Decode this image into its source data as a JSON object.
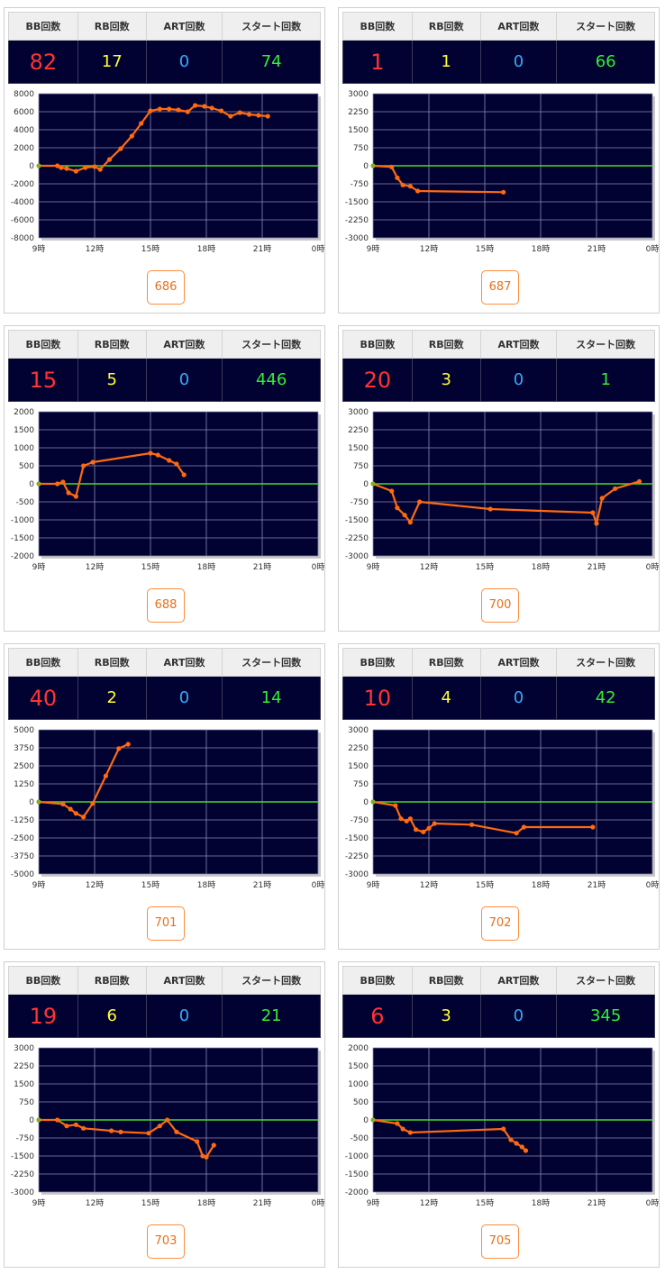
{
  "headers": {
    "bb": "BB回数",
    "rb": "RB回数",
    "art": "ART回数",
    "start": "スタート回数"
  },
  "chart_data": [
    {
      "type": "line",
      "machine": "686",
      "bb": "82",
      "rb": "17",
      "art": "0",
      "start": "74",
      "x_ticks": [
        "9時",
        "12時",
        "15時",
        "18時",
        "21時",
        "0時"
      ],
      "y_ticks": [
        "8000",
        "6000",
        "4000",
        "2000",
        "0",
        "-2000",
        "-4000",
        "-6000",
        "-8000"
      ],
      "ylim": [
        -8000,
        8000
      ],
      "xlim": [
        9,
        24
      ],
      "x": [
        9.0,
        10.0,
        10.2,
        10.5,
        11.0,
        11.5,
        12.0,
        12.3,
        12.8,
        13.4,
        14.0,
        14.5,
        15.0,
        15.5,
        16.0,
        16.5,
        17.0,
        17.4,
        17.9,
        18.3,
        18.8,
        19.3,
        19.8,
        20.3,
        20.8,
        21.3
      ],
      "y": [
        0,
        0,
        -200,
        -300,
        -600,
        -200,
        -100,
        -400,
        700,
        1900,
        3300,
        4700,
        6100,
        6300,
        6300,
        6200,
        6000,
        6700,
        6600,
        6400,
        6100,
        5500,
        5900,
        5700,
        5600,
        5500
      ]
    },
    {
      "type": "line",
      "machine": "687",
      "bb": "1",
      "rb": "1",
      "art": "0",
      "start": "66",
      "x_ticks": [
        "9時",
        "12時",
        "15時",
        "18時",
        "21時",
        "0時"
      ],
      "y_ticks": [
        "3000",
        "2250",
        "1500",
        "750",
        "0",
        "-750",
        "-1500",
        "-2250",
        "-3000"
      ],
      "ylim": [
        -3000,
        3000
      ],
      "xlim": [
        9,
        24
      ],
      "x": [
        9.0,
        10.0,
        10.3,
        10.6,
        11.0,
        11.4,
        16.0
      ],
      "y": [
        0,
        -50,
        -500,
        -800,
        -850,
        -1050,
        -1100
      ]
    },
    {
      "type": "line",
      "machine": "688",
      "bb": "15",
      "rb": "5",
      "art": "0",
      "start": "446",
      "x_ticks": [
        "9時",
        "12時",
        "15時",
        "18時",
        "21時",
        "0時"
      ],
      "y_ticks": [
        "2000",
        "1500",
        "1000",
        "500",
        "0",
        "-500",
        "-1000",
        "-1500",
        "-2000"
      ],
      "ylim": [
        -2000,
        2000
      ],
      "xlim": [
        9,
        24
      ],
      "x": [
        9.0,
        10.0,
        10.3,
        10.6,
        11.0,
        11.4,
        11.9,
        15.0,
        15.4,
        16.0,
        16.4,
        16.8
      ],
      "y": [
        0,
        0,
        50,
        -250,
        -350,
        500,
        600,
        850,
        800,
        650,
        550,
        250
      ]
    },
    {
      "type": "line",
      "machine": "700",
      "bb": "20",
      "rb": "3",
      "art": "0",
      "start": "1",
      "x_ticks": [
        "9時",
        "12時",
        "15時",
        "18時",
        "21時",
        "0時"
      ],
      "y_ticks": [
        "3000",
        "2250",
        "1500",
        "750",
        "0",
        "-750",
        "-1500",
        "-2250",
        "-3000"
      ],
      "ylim": [
        -3000,
        3000
      ],
      "xlim": [
        9,
        24
      ],
      "x": [
        9.0,
        10.0,
        10.3,
        10.7,
        11.0,
        11.5,
        15.3,
        20.8,
        21.0,
        21.3,
        22.0,
        23.3
      ],
      "y": [
        0,
        -300,
        -1000,
        -1300,
        -1600,
        -750,
        -1050,
        -1200,
        -1650,
        -600,
        -200,
        100
      ]
    },
    {
      "type": "line",
      "machine": "701",
      "bb": "40",
      "rb": "2",
      "art": "0",
      "start": "14",
      "x_ticks": [
        "9時",
        "12時",
        "15時",
        "18時",
        "21時",
        "0時"
      ],
      "y_ticks": [
        "5000",
        "3750",
        "2500",
        "1250",
        "0",
        "-1250",
        "-2500",
        "-3750",
        "-5000"
      ],
      "ylim": [
        -5000,
        5000
      ],
      "xlim": [
        9,
        24
      ],
      "x": [
        9.0,
        10.3,
        10.7,
        11.0,
        11.4,
        11.9,
        12.6,
        13.3,
        13.8
      ],
      "y": [
        0,
        -150,
        -500,
        -800,
        -1050,
        -100,
        1800,
        3700,
        4000
      ]
    },
    {
      "type": "line",
      "machine": "702",
      "bb": "10",
      "rb": "4",
      "art": "0",
      "start": "42",
      "x_ticks": [
        "9時",
        "12時",
        "15時",
        "18時",
        "21時",
        "0時"
      ],
      "y_ticks": [
        "3000",
        "2250",
        "1500",
        "750",
        "0",
        "-750",
        "-1500",
        "-2250",
        "-3000"
      ],
      "ylim": [
        -3000,
        3000
      ],
      "xlim": [
        9,
        24
      ],
      "x": [
        9.0,
        10.2,
        10.5,
        10.8,
        11.0,
        11.3,
        11.7,
        12.0,
        12.3,
        14.3,
        16.7,
        17.1,
        20.8
      ],
      "y": [
        0,
        -150,
        -700,
        -800,
        -700,
        -1150,
        -1250,
        -1100,
        -900,
        -950,
        -1300,
        -1050,
        -1050
      ]
    },
    {
      "type": "line",
      "machine": "703",
      "bb": "19",
      "rb": "6",
      "art": "0",
      "start": "21",
      "x_ticks": [
        "9時",
        "12時",
        "15時",
        "18時",
        "21時",
        "0時"
      ],
      "y_ticks": [
        "3000",
        "2250",
        "1500",
        "750",
        "0",
        "-750",
        "-1500",
        "-2250",
        "-3000"
      ],
      "ylim": [
        -3000,
        3000
      ],
      "xlim": [
        9,
        24
      ],
      "x": [
        9.0,
        10.0,
        10.5,
        11.0,
        11.4,
        12.9,
        13.4,
        14.9,
        15.5,
        15.9,
        16.4,
        17.5,
        17.8,
        18.0,
        18.4
      ],
      "y": [
        0,
        0,
        -250,
        -200,
        -350,
        -450,
        -500,
        -550,
        -250,
        0,
        -500,
        -900,
        -1500,
        -1550,
        -1050
      ]
    },
    {
      "type": "line",
      "machine": "705",
      "bb": "6",
      "rb": "3",
      "art": "0",
      "start": "345",
      "x_ticks": [
        "9時",
        "12時",
        "15時",
        "18時",
        "21時",
        "0時"
      ],
      "y_ticks": [
        "2000",
        "1500",
        "1000",
        "500",
        "0",
        "-500",
        "-1000",
        "-1500",
        "-2000"
      ],
      "ylim": [
        -2000,
        2000
      ],
      "xlim": [
        9,
        24
      ],
      "x": [
        9.0,
        10.3,
        10.6,
        11.0,
        16.0,
        16.4,
        16.7,
        17.0,
        17.2
      ],
      "y": [
        0,
        -100,
        -250,
        -350,
        -250,
        -550,
        -650,
        -750,
        -850
      ]
    }
  ]
}
